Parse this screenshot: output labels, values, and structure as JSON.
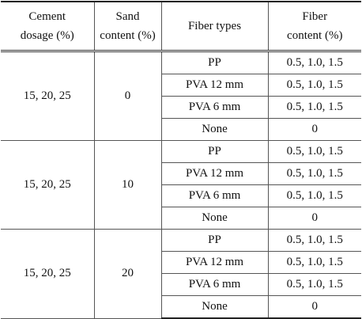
{
  "table": {
    "header": [
      "Cement\ndosage (%)",
      "Sand\ncontent (%)",
      "Fiber types",
      "Fiber\ncontent (%)"
    ],
    "groups": [
      {
        "cement": "15, 20, 25",
        "sand": "0",
        "rows": [
          [
            "PP",
            "0.5, 1.0, 1.5"
          ],
          [
            "PVA 12 mm",
            "0.5, 1.0, 1.5"
          ],
          [
            "PVA 6 mm",
            "0.5, 1.0, 1.5"
          ],
          [
            "None",
            "0"
          ]
        ]
      },
      {
        "cement": "15, 20, 25",
        "sand": "10",
        "rows": [
          [
            "PP",
            "0.5, 1.0, 1.5"
          ],
          [
            "PVA 12 mm",
            "0.5, 1.0, 1.5"
          ],
          [
            "PVA 6 mm",
            "0.5, 1.0, 1.5"
          ],
          [
            "None",
            "0"
          ]
        ]
      },
      {
        "cement": "15, 20, 25",
        "sand": "20",
        "rows": [
          [
            "PP",
            "0.5, 1.0, 1.5"
          ],
          [
            "PVA 12 mm",
            "0.5, 1.0, 1.5"
          ],
          [
            "PVA 6 mm",
            "0.5, 1.0, 1.5"
          ],
          [
            "None",
            "0"
          ]
        ]
      }
    ]
  }
}
